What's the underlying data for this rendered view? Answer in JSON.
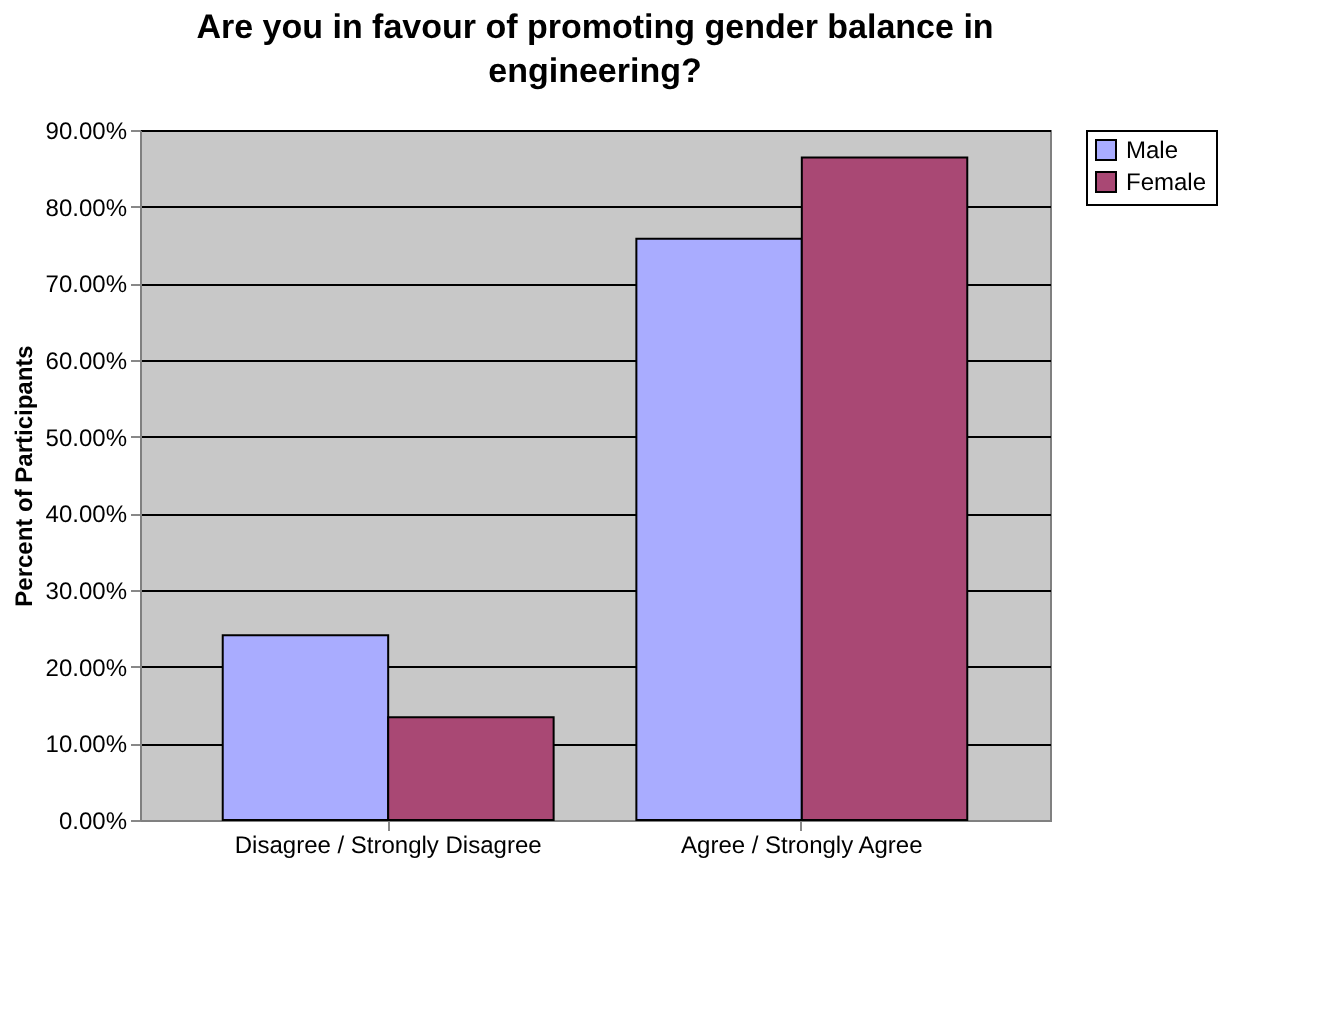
{
  "chart_data": {
    "type": "bar",
    "title": "Are you in favour of promoting gender balance in engineering?",
    "ylabel": "Percent of Participants",
    "categories": [
      "Disagree / Strongly Disagree",
      "Agree / Strongly Agree"
    ],
    "series": [
      {
        "name": "Male",
        "color": "#a9acff",
        "values": [
          24.1,
          75.8
        ]
      },
      {
        "name": "Female",
        "color": "#a94874",
        "values": [
          13.4,
          86.4
        ]
      }
    ],
    "ylim": [
      0,
      90
    ],
    "yticks": [
      {
        "value": 0,
        "label": "0.00%"
      },
      {
        "value": 10,
        "label": "10.00%"
      },
      {
        "value": 20,
        "label": "20.00%"
      },
      {
        "value": 30,
        "label": "30.00%"
      },
      {
        "value": 40,
        "label": "40.00%"
      },
      {
        "value": 50,
        "label": "50.00%"
      },
      {
        "value": 60,
        "label": "60.00%"
      },
      {
        "value": 70,
        "label": "70.00%"
      },
      {
        "value": 80,
        "label": "80.00%"
      },
      {
        "value": 90,
        "label": "90.00%"
      }
    ],
    "grid": "y",
    "legend": "right"
  }
}
